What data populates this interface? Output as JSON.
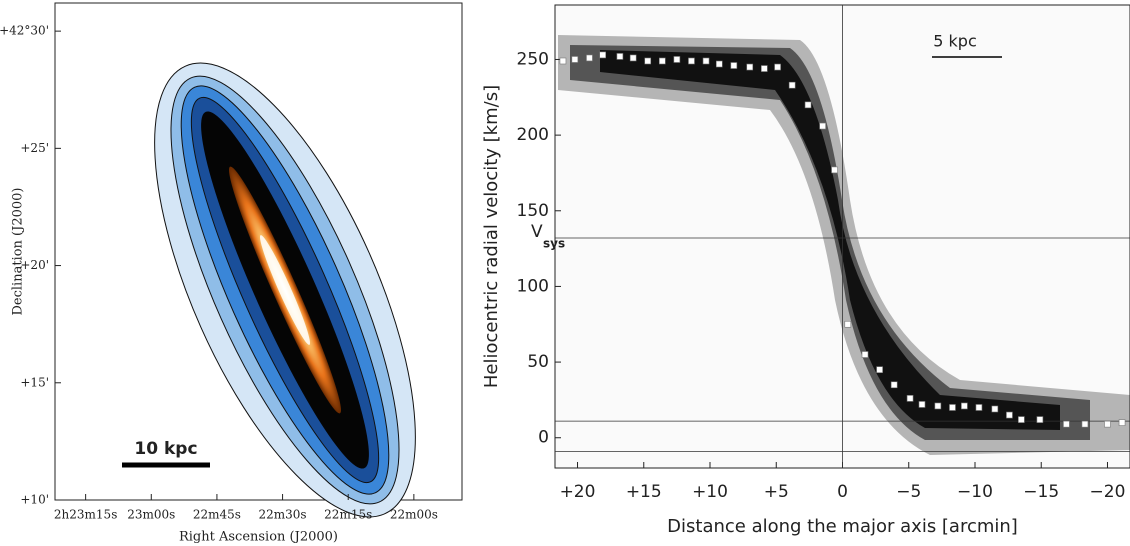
{
  "chart_data": [
    {
      "type": "image",
      "xlabel": "Right Ascension (J2000)",
      "ylabel": "Declination (J2000)",
      "scale_bar": "10 kpc",
      "xlim": [
        8602,
        8509
      ],
      "ylim": [
        10,
        31.2
      ],
      "xticks": [
        {
          "value": 8595,
          "label": "2h23m15s"
        },
        {
          "value": 8580,
          "label": "23m00s"
        },
        {
          "value": 8565,
          "label": "22m45s"
        },
        {
          "value": 8550,
          "label": "22m30s"
        },
        {
          "value": 8535,
          "label": "22m15s"
        },
        {
          "value": 8520,
          "label": "22m00s"
        }
      ],
      "yticks": [
        {
          "value": 30,
          "label": "+42°30'"
        },
        {
          "value": 25,
          "label": "+25'"
        },
        {
          "value": 20,
          "label": "+20'"
        },
        {
          "value": 15,
          "label": "+15'"
        },
        {
          "value": 10,
          "label": "+10'"
        }
      ]
    },
    {
      "type": "scatter",
      "xlabel": "Distance along the major axis [arcmin]",
      "ylabel": "Heliocentric radial velocity [km/s]",
      "scale_bar": "5 kpc",
      "vsys": 132,
      "vsys_label": {
        "main": "V",
        "sub": "sys"
      },
      "hlines": [
        11,
        -9
      ],
      "vline": 0,
      "xlim": [
        21.7,
        -21.7
      ],
      "ylim": [
        -20,
        286
      ],
      "xticks": [
        {
          "value": 20,
          "label": "+20"
        },
        {
          "value": 15,
          "label": "+15"
        },
        {
          "value": 10,
          "label": "+10"
        },
        {
          "value": 5,
          "label": "+5"
        },
        0,
        {
          "value": -5,
          "label": "−5"
        },
        {
          "value": -10,
          "label": "−10"
        },
        {
          "value": -15,
          "label": "−15"
        },
        {
          "value": -20,
          "label": "−20"
        }
      ],
      "yticks": [
        0,
        50,
        100,
        150,
        200,
        250
      ],
      "series": [
        {
          "color": "#ffffff",
          "x": [
            21.1,
            20.2,
            19.1,
            18.1,
            16.8,
            15.8,
            14.7,
            13.6,
            12.5,
            11.4,
            10.3,
            9.3,
            8.2,
            7.0,
            5.9,
            4.9,
            3.8,
            2.6,
            1.5,
            0.6,
            -0.4,
            -1.7,
            -2.8,
            -3.9,
            -5.1,
            -6.0,
            -7.2,
            -8.3,
            -9.2,
            -10.3,
            -11.5,
            -12.6,
            -13.5,
            -14.9,
            -16.9,
            -18.3,
            -20.0,
            -21.1
          ],
          "values": [
            249,
            250,
            251,
            253,
            252,
            251,
            249,
            249,
            250,
            249,
            249,
            247,
            246,
            245,
            244,
            245,
            233,
            220,
            206,
            177,
            75,
            55,
            45,
            35,
            26,
            22,
            21,
            20,
            21,
            20,
            19,
            15,
            12,
            12,
            9,
            9,
            9,
            10
          ]
        }
      ]
    }
  ]
}
